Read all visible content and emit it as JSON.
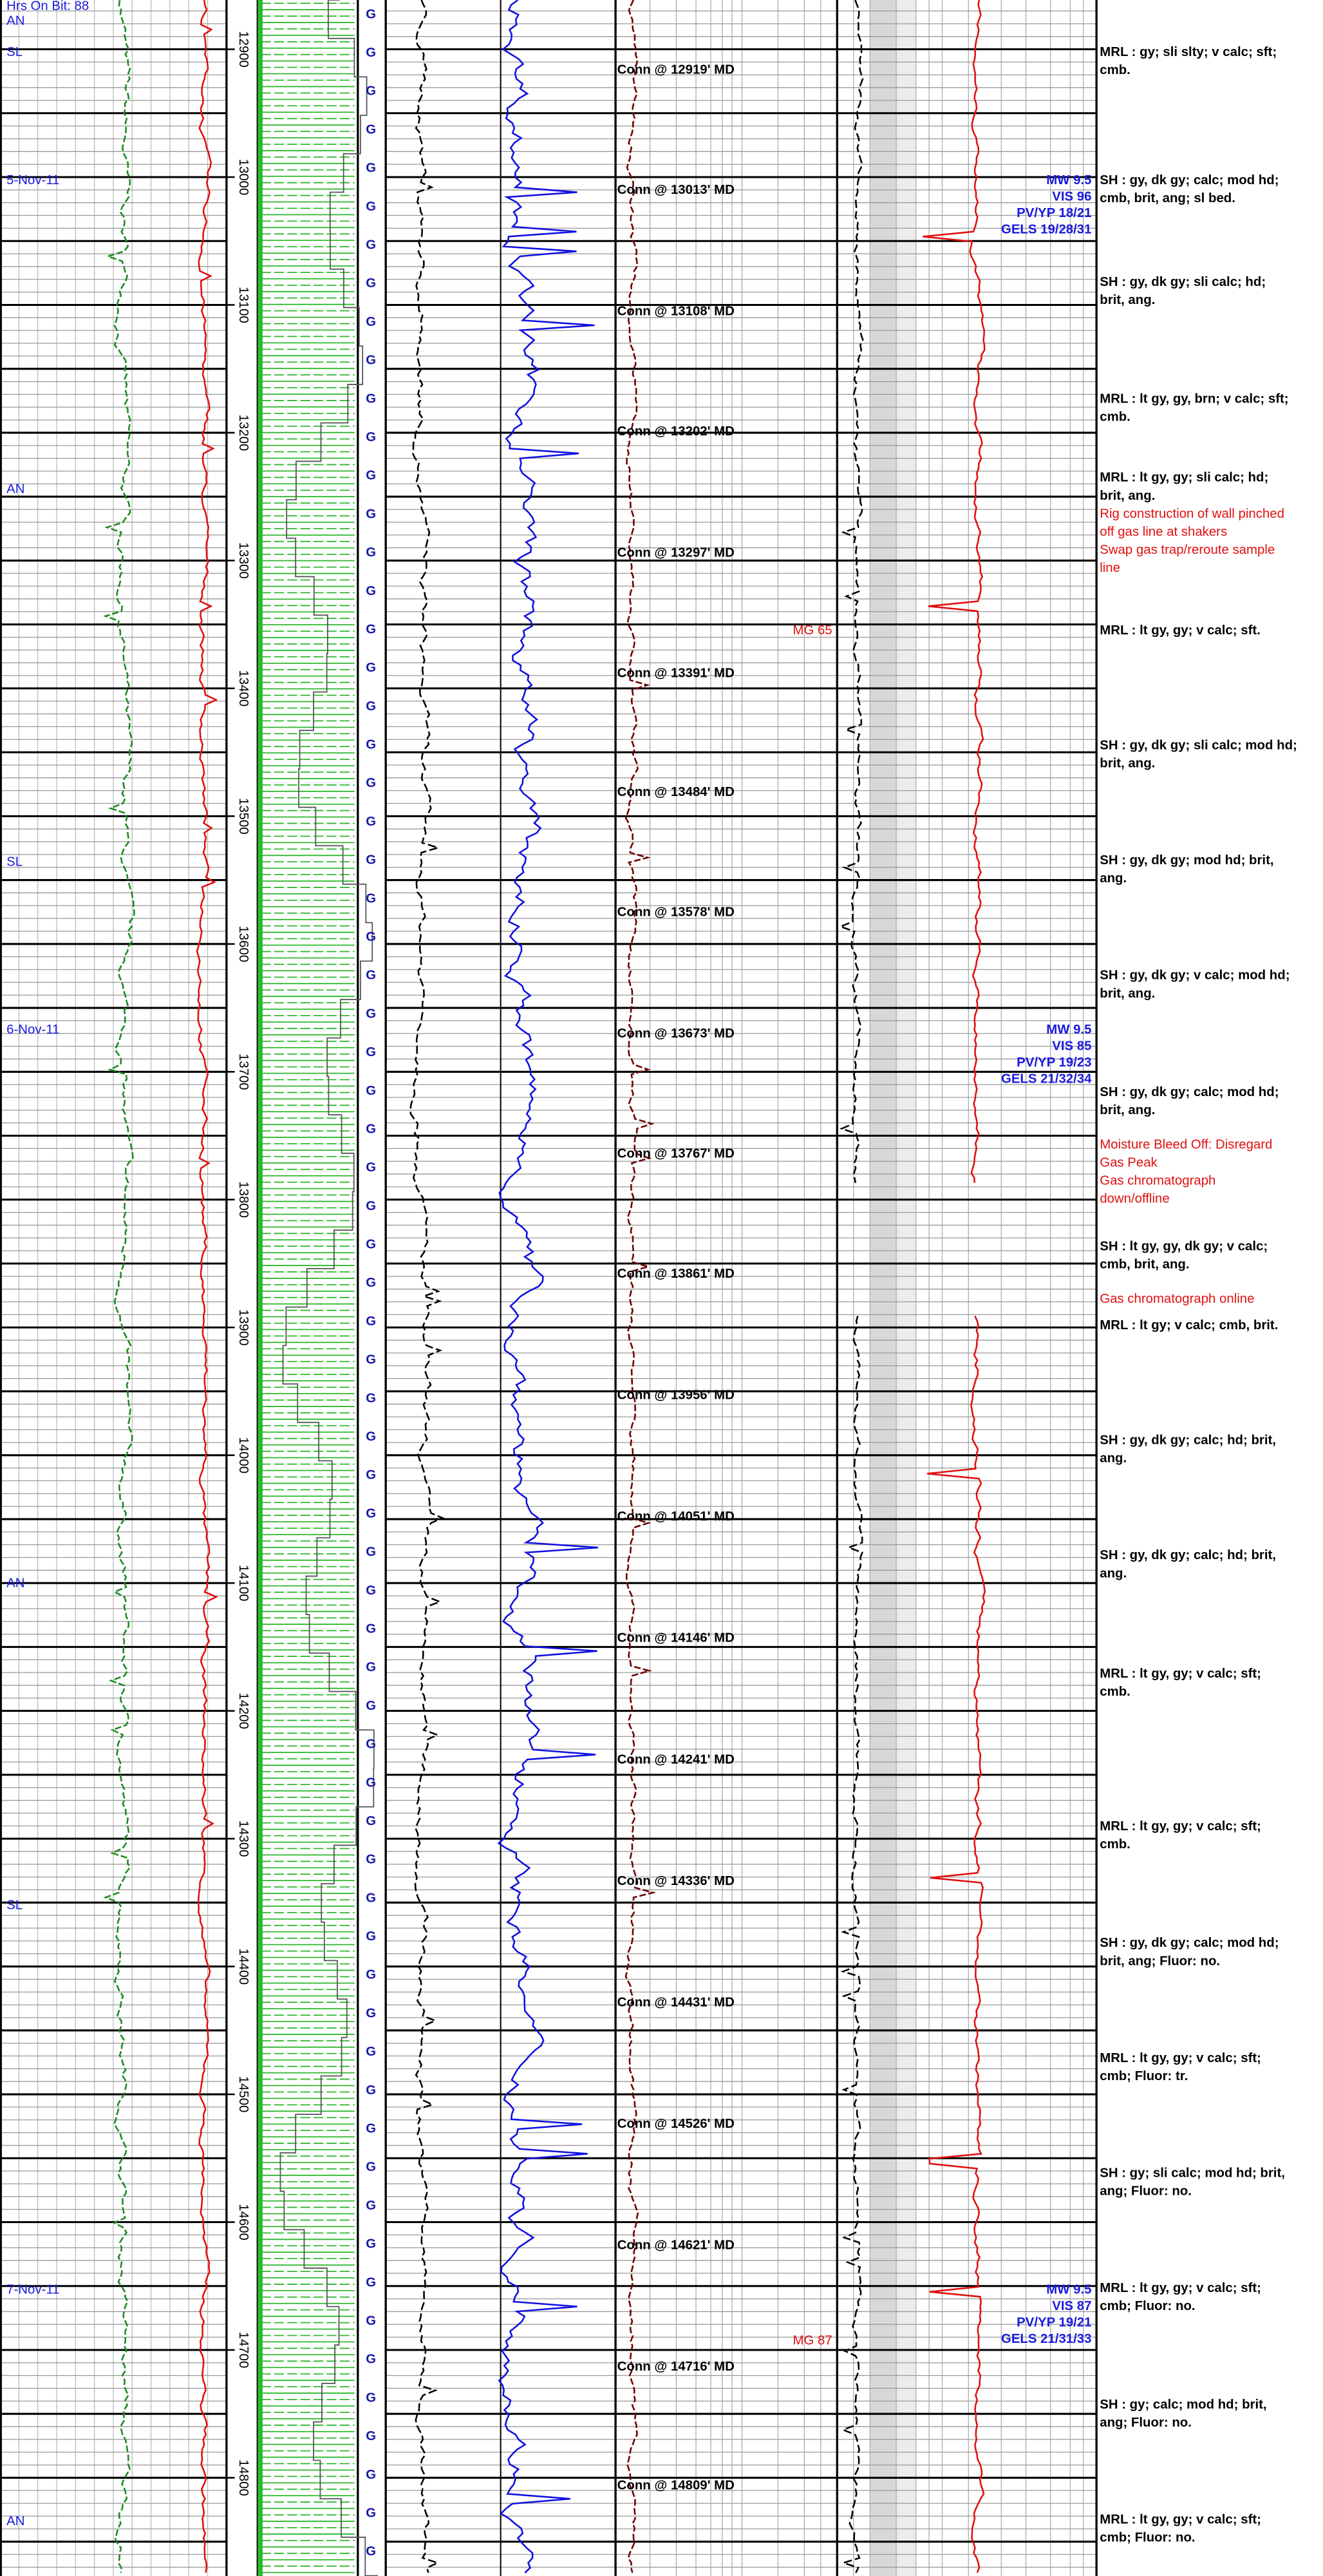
{
  "depth_ticks": [
    12900,
    13000,
    13100,
    13200,
    13300,
    13400,
    13500,
    13600,
    13700,
    13800,
    13900,
    14000,
    14100,
    14200,
    14300,
    14400,
    14500,
    14600,
    14700,
    14800
  ],
  "track_marker": "G",
  "left_notes": [
    "Hrs On Bit: 88",
    "AN",
    "SL",
    "5-Nov-11",
    "AN",
    "SL",
    "6-Nov-11",
    "AN",
    "SL",
    "7-Nov-11",
    "AN"
  ],
  "connections": [
    {
      "label": "Conn @ 12919' MD",
      "depth": 12919
    },
    {
      "label": "Conn @ 13013' MD",
      "depth": 13013
    },
    {
      "label": "Conn @ 13108' MD",
      "depth": 13108
    },
    {
      "label": "Conn @ 13202' MD",
      "depth": 13202
    },
    {
      "label": "Conn @ 13297' MD",
      "depth": 13297
    },
    {
      "label": "Conn @ 13391' MD",
      "depth": 13391
    },
    {
      "label": "Conn @ 13484' MD",
      "depth": 13484
    },
    {
      "label": "Conn @ 13578' MD",
      "depth": 13578
    },
    {
      "label": "Conn @ 13673' MD",
      "depth": 13673
    },
    {
      "label": "Conn @ 13767' MD",
      "depth": 13767
    },
    {
      "label": "Conn @ 13861' MD",
      "depth": 13861
    },
    {
      "label": "Conn @ 13956' MD",
      "depth": 13956
    },
    {
      "label": "Conn @ 14051' MD",
      "depth": 14051
    },
    {
      "label": "Conn @ 14146' MD",
      "depth": 14146
    },
    {
      "label": "Conn @ 14241' MD",
      "depth": 14241
    },
    {
      "label": "Conn @ 14336' MD",
      "depth": 14336
    },
    {
      "label": "Conn @ 14431' MD",
      "depth": 14431
    },
    {
      "label": "Conn @ 14526' MD",
      "depth": 14526
    },
    {
      "label": "Conn @ 14621' MD",
      "depth": 14621
    },
    {
      "label": "Conn @ 14716' MD",
      "depth": 14716
    },
    {
      "label": "Conn @ 14809' MD",
      "depth": 14809
    }
  ],
  "mud_reports": [
    [
      "MW 9.5",
      "VIS 96",
      "PV/YP 18/21",
      "GELS 19/28/31"
    ],
    [
      "MW 9.5",
      "VIS 85",
      "PV/YP 19/23",
      "GELS 21/32/34"
    ],
    [
      "MW 9.5",
      "VIS 87",
      "PV/YP 19/21",
      "GELS 21/31/33"
    ]
  ],
  "gas_notes": [
    "MG 65",
    "MG 87"
  ],
  "descriptions": [
    [
      "MRL : gy;  sli slty;  v calc;  sft;",
      "cmb."
    ],
    [
      "SH : gy, dk gy;  calc;  mod hd;",
      "cmb, brit, ang;  sl bed."
    ],
    [
      "SH : gy, dk gy;  sli calc;  hd;",
      "brit, ang."
    ],
    [
      "MRL : lt gy, gy, brn;  v calc;  sft;",
      "cmb."
    ],
    [
      "MRL : lt gy, gy;  sli calc;  hd;",
      "brit, ang."
    ],
    [
      "Rig construction of wall pinched",
      "off gas line at shakers",
      "Swap gas trap/reroute sample",
      "line"
    ],
    [
      "MRL : lt gy, gy;  v calc;  sft."
    ],
    [
      "SH : gy, dk gy;  sli calc;  mod hd;",
      "brit, ang."
    ],
    [
      "SH : gy, dk gy;  mod hd;  brit,",
      "ang."
    ],
    [
      "SH : gy, dk gy;  v calc;  mod hd;",
      "brit, ang."
    ],
    [
      "SH : gy, dk gy;  calc;  mod hd;",
      "brit, ang."
    ],
    [
      "Moisture Bleed Off: Disregard",
      "Gas Peak",
      "Gas chromatograph",
      "down/offline"
    ],
    [
      "SH : lt gy, gy, dk gy;  v calc;",
      "cmb, brit, ang."
    ],
    [
      "Gas chromatograph online"
    ],
    [
      "MRL : lt gy;  v calc;  cmb, brit."
    ],
    [
      "SH : gy, dk gy;  calc;  hd;  brit,",
      "ang."
    ],
    [
      "SH : gy, dk gy;  calc;  hd;  brit,",
      "ang."
    ],
    [
      "MRL : lt gy, gy;  v calc;  sft;",
      "cmb."
    ],
    [
      "MRL : lt gy, gy;  v calc;  sft;",
      "cmb."
    ],
    [
      "SH : gy, dk gy;  calc;  mod hd;",
      "brit, ang;  Fluor: no."
    ],
    [
      "MRL : lt gy, gy;  v calc;  sft;",
      "cmb;  Fluor: tr."
    ],
    [
      "SH : gy;  sli calc;  mod hd;  brit,",
      "ang;  Fluor: no."
    ],
    [
      "MRL : lt gy, gy;  v calc;  sft;",
      "cmb;  Fluor: no."
    ],
    [
      "SH : gy;  calc;  mod hd;  brit,",
      "ang;  Fluor: no."
    ],
    [
      "MRL : lt gy, gy;  v calc;  sft;",
      "cmb;  Fluor: no."
    ]
  ]
}
